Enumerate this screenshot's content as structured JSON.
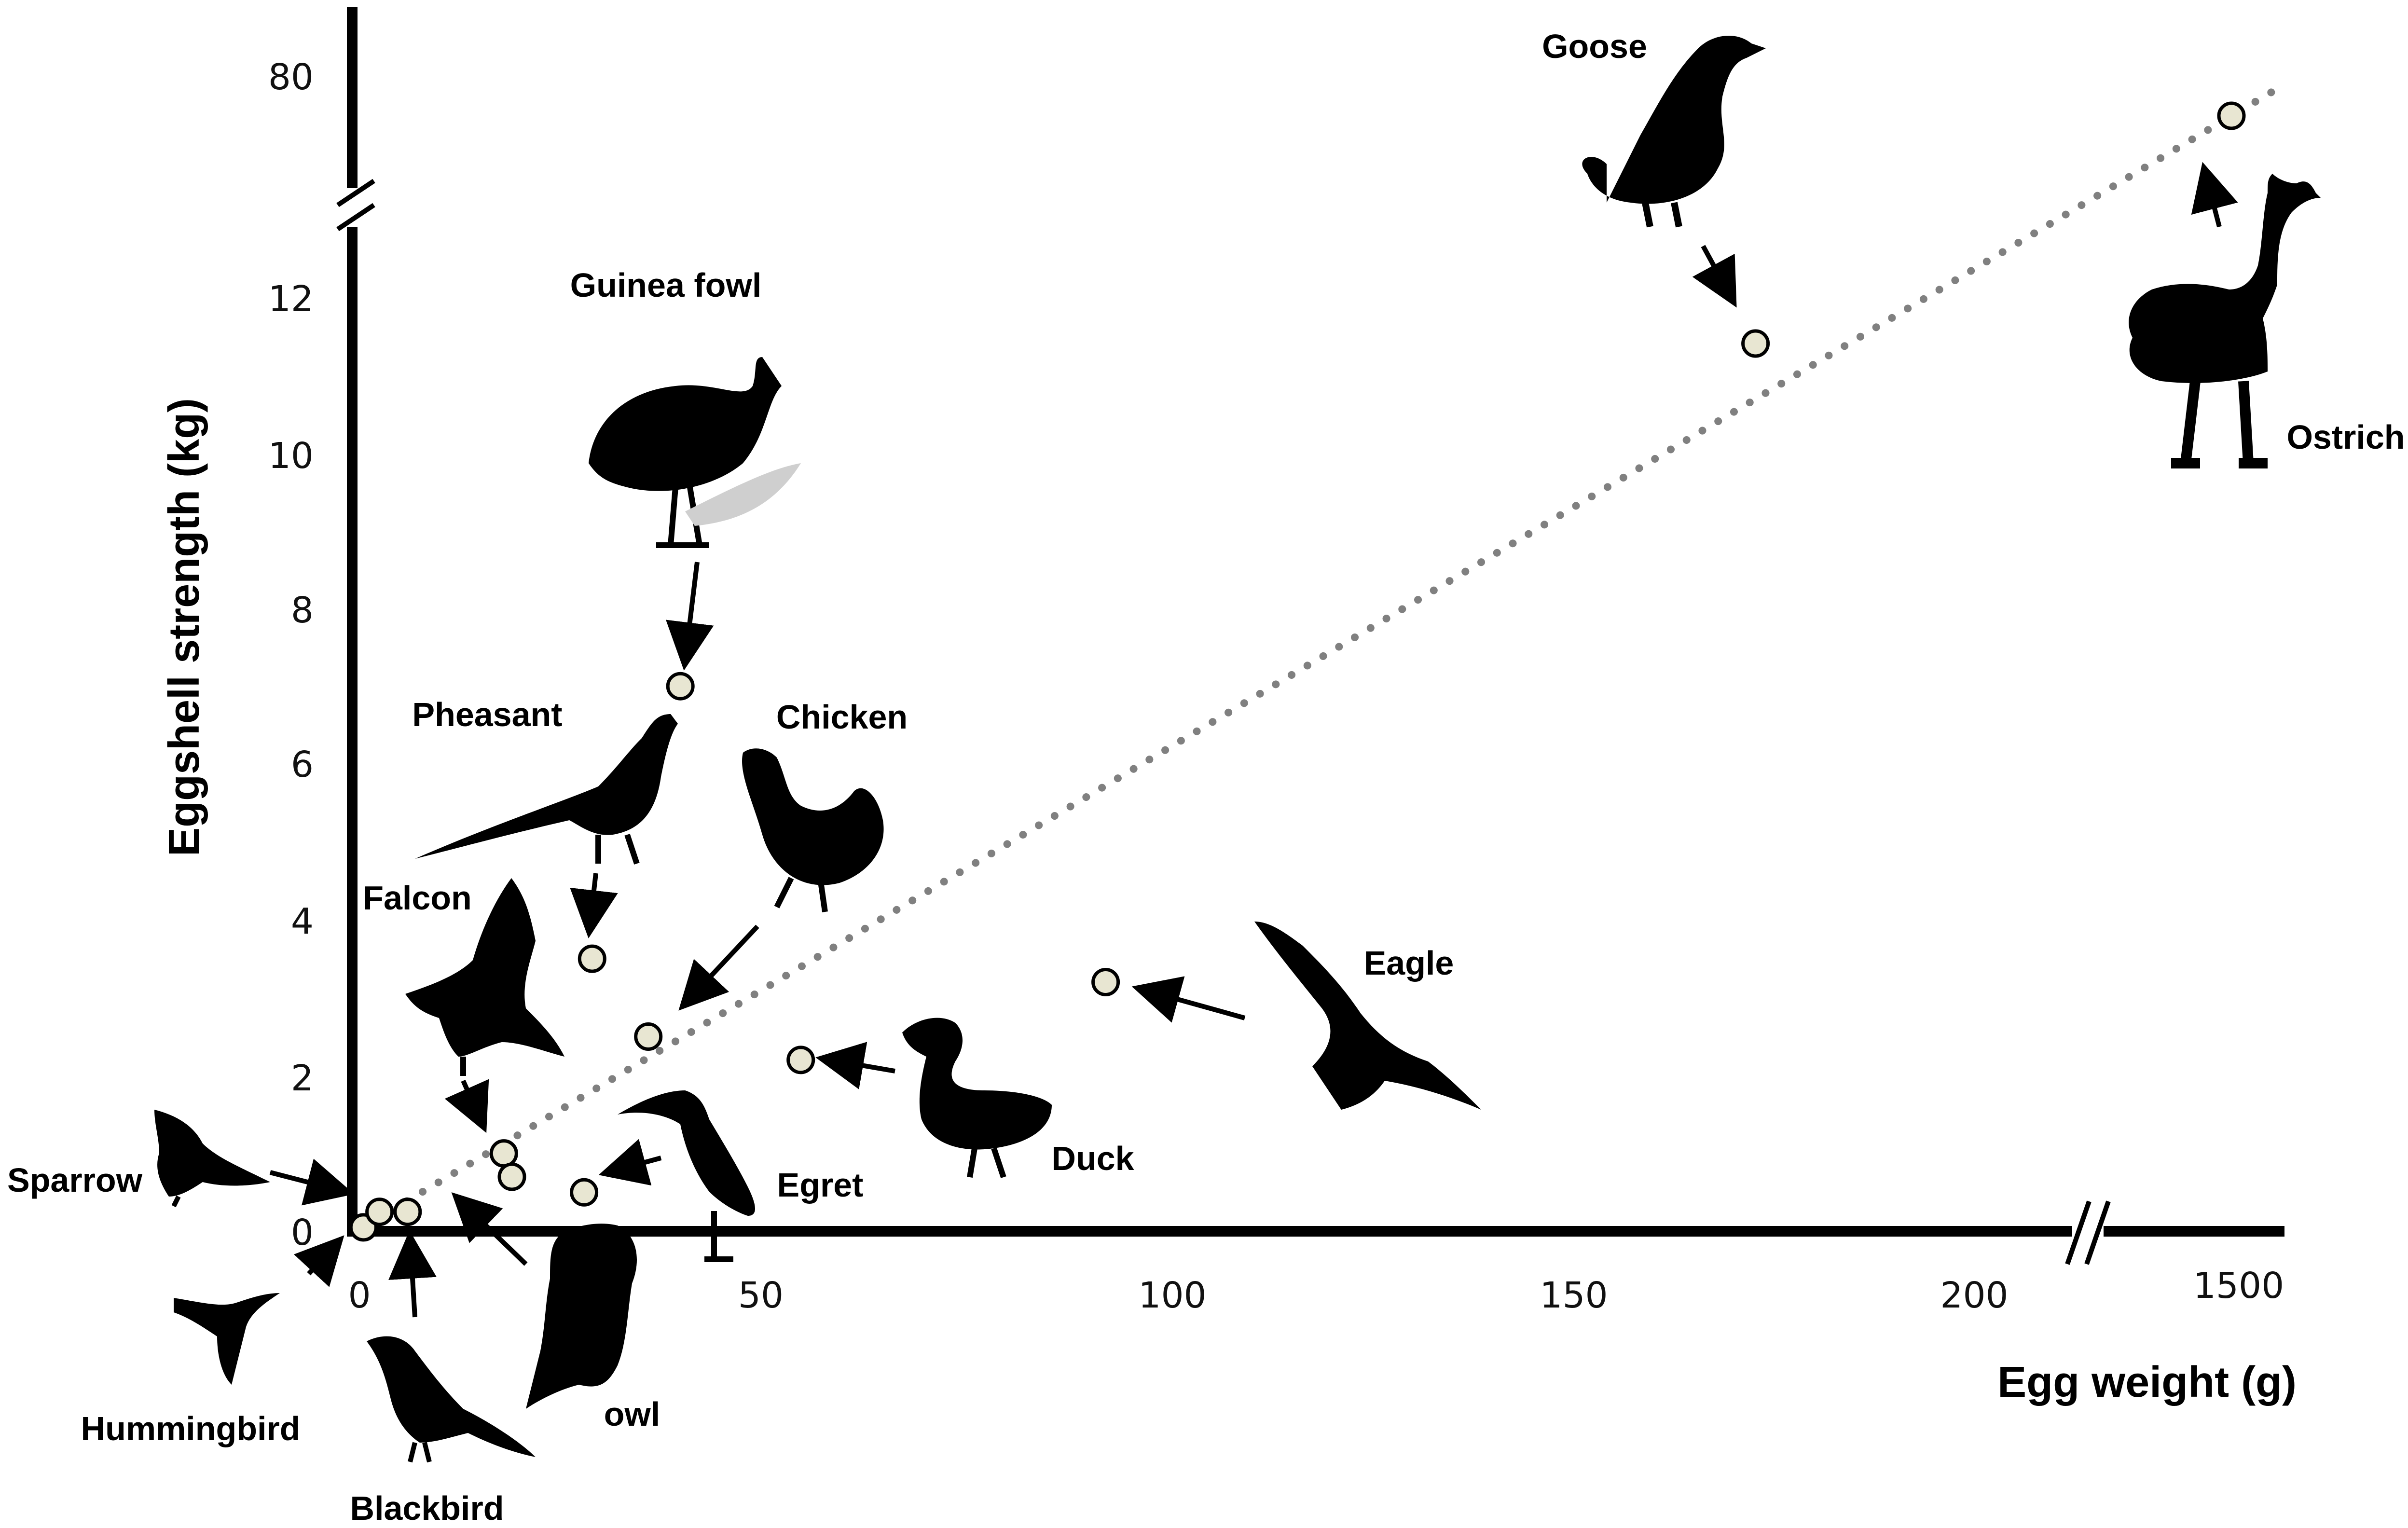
{
  "chart_data": {
    "type": "scatter",
    "title": "",
    "xlabel": "Egg weight (g)",
    "ylabel": "Eggshell strength (kg)",
    "x_ticks": [
      "0",
      "50",
      "100",
      "150",
      "200",
      "1500"
    ],
    "y_ticks": [
      "0",
      "2",
      "4",
      "6",
      "8",
      "10",
      "12",
      "80"
    ],
    "xlim": [
      0,
      230
    ],
    "ylim": [
      0,
      14
    ],
    "x_axis_break": {
      "between": [
        215,
        1450
      ]
    },
    "y_axis_break": {
      "between": [
        13,
        78
      ]
    },
    "grid": false,
    "legend": "none",
    "trendline": {
      "style": "dotted",
      "color": "#808080"
    },
    "point_color": "#e8e6d2",
    "points": [
      {
        "name": "Hummingbird",
        "x": 0.5,
        "y": 0.05
      },
      {
        "name": "Sparrow",
        "x": 2.5,
        "y": 0.25
      },
      {
        "name": "Blackbird",
        "x": 6,
        "y": 0.25
      },
      {
        "name": "Falcon",
        "x": 18,
        "y": 1.0
      },
      {
        "name": "owl",
        "x": 19,
        "y": 0.7
      },
      {
        "name": "Egret",
        "x": 28,
        "y": 0.5
      },
      {
        "name": "Chicken",
        "x": 36,
        "y": 2.5
      },
      {
        "name": "Pheasant",
        "x": 29,
        "y": 3.5
      },
      {
        "name": "Guinea fowl",
        "x": 40,
        "y": 7.0
      },
      {
        "name": "Duck",
        "x": 55,
        "y": 2.2
      },
      {
        "name": "Eagle",
        "x": 93,
        "y": 3.2
      },
      {
        "name": "Goose",
        "x": 174,
        "y": 11.4
      },
      {
        "name": "Ostrich",
        "x": 1500,
        "y": 76
      }
    ],
    "labels": {
      "goose": "Goose",
      "guinea_fowl": "Guinea fowl",
      "pheasant": "Pheasant",
      "chicken": "Chicken",
      "falcon": "Falcon",
      "eagle": "Eagle",
      "sparrow": "Sparrow",
      "duck": "Duck",
      "egret": "Egret",
      "hummingbird": "Hummingbird",
      "owl": "owl",
      "blackbird": "Blackbird",
      "ostrich": "Ostrich"
    },
    "silhouette_icons": [
      "goose-icon",
      "guinea-fowl-icon",
      "pheasant-icon",
      "chicken-icon",
      "falcon-icon",
      "eagle-icon",
      "sparrow-icon",
      "duck-icon",
      "egret-icon",
      "hummingbird-icon",
      "owl-icon",
      "blackbird-icon",
      "ostrich-icon"
    ]
  }
}
